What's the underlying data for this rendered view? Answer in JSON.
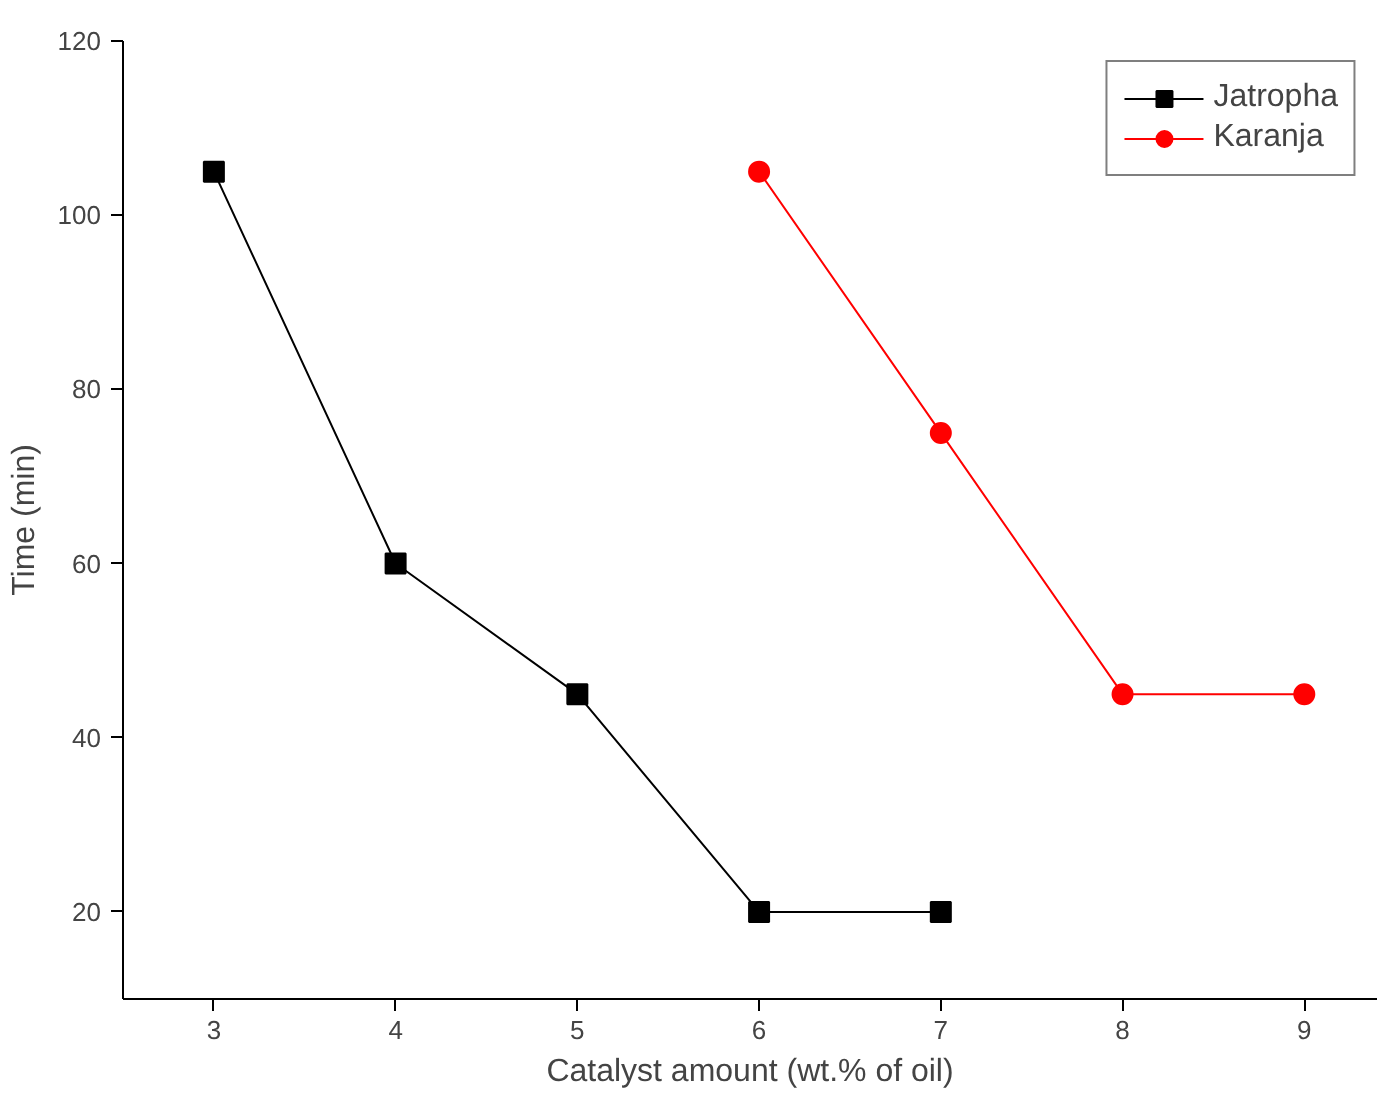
{
  "chart_data": {
    "type": "line",
    "xlabel": "Catalyst amount (wt.% of oil)",
    "ylabel": "Time (min)",
    "xlim": [
      2.5,
      9.4
    ],
    "xticks": [
      3,
      4,
      5,
      6,
      7,
      8,
      9
    ],
    "ylim": [
      10,
      120
    ],
    "yticks": [
      20,
      40,
      60,
      80,
      100,
      120
    ],
    "grid": false,
    "legend": "top right",
    "line_style": "solid",
    "series": [
      {
        "name": "Jatropha",
        "color": "#000000",
        "marker": "square",
        "x": [
          3,
          4,
          5,
          6,
          7
        ],
        "values": [
          105,
          60,
          45,
          20,
          20
        ]
      },
      {
        "name": "Karanja",
        "color": "#ff0000",
        "marker": "circle",
        "x": [
          6,
          7,
          8,
          9
        ],
        "values": [
          105,
          75,
          45,
          45
        ]
      }
    ]
  }
}
